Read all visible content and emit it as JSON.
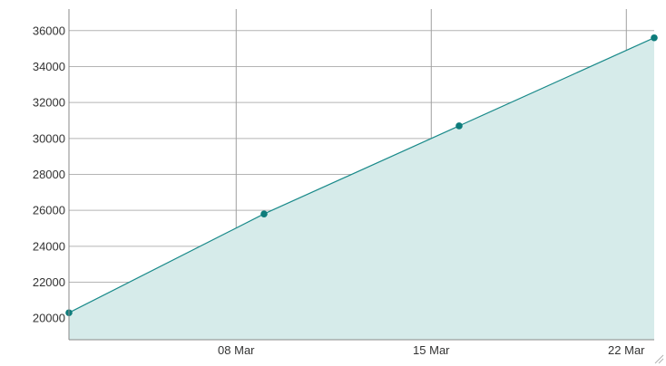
{
  "chart_data": {
    "type": "area",
    "title": "",
    "xlabel": "",
    "ylabel": "",
    "x": [
      "2019-03-02",
      "2019-03-09",
      "2019-03-16",
      "2019-03-23"
    ],
    "series": [
      {
        "values": [
          20300,
          25800,
          30700,
          35600
        ]
      }
    ],
    "ylim": [
      18800,
      37200
    ],
    "xlim": [
      "2019-03-02",
      "2019-03-23"
    ],
    "y_ticks": [
      20000,
      22000,
      24000,
      26000,
      28000,
      30000,
      32000,
      34000,
      36000
    ],
    "x_ticks": [
      {
        "date": "2019-03-08",
        "label": "08 Mar"
      },
      {
        "date": "2019-03-15",
        "label": "15 Mar"
      },
      {
        "date": "2019-03-22",
        "label": "22 Mar"
      }
    ],
    "grid": true,
    "legend": "none",
    "line_color": "#1a8a8a",
    "fill_color": "#d6ebea",
    "point_color": "#0e7c7b",
    "grid_color": "#b4b4b4",
    "vgrid_color": "#a0a0a0",
    "axis_color": "#888888",
    "resize_handle": "resize-grip-icon"
  }
}
